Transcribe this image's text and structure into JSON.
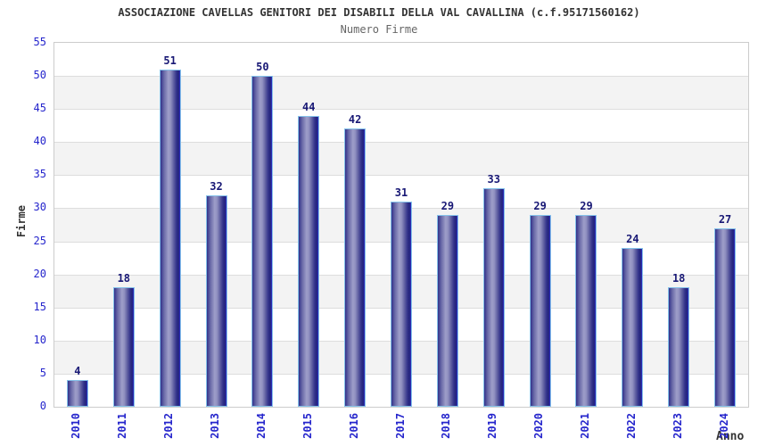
{
  "header": {
    "title": "ASSOCIAZIONE CAVELLAS GENITORI DEI DISABILI DELLA VAL CAVALLINA (c.f.95171560162)",
    "subtitle": "Numero Firme"
  },
  "chart_data": {
    "type": "bar",
    "title": "Numero Firme",
    "categories": [
      "2010",
      "2011",
      "2012",
      "2013",
      "2014",
      "2015",
      "2016",
      "2017",
      "2018",
      "2019",
      "2020",
      "2021",
      "2022",
      "2023",
      "2024"
    ],
    "values": [
      4,
      18,
      51,
      32,
      50,
      44,
      42,
      31,
      29,
      33,
      29,
      29,
      24,
      18,
      27
    ],
    "xlabel": "Anno",
    "ylabel": "Firme",
    "ylim": [
      0,
      55
    ],
    "ytick_step": 5,
    "grid": "horizontal-bands-alternating",
    "legend": "none",
    "colors": {
      "tick_label_blue": "#2525cc",
      "value_label_navy": "#181875",
      "title_color": "#333333",
      "subtitle_color": "#666666",
      "band_gray": "#f3f3f3",
      "band_white": "#ffffff",
      "gridline": "#dddddd",
      "plot_border": "#cccccc",
      "bar_border": "#85c2ea",
      "bar_gradient_dark": "#32328a",
      "bar_gradient_light": "#9e9ec9",
      "bar_gradient_edge_bright": "#2d2dc8"
    }
  }
}
